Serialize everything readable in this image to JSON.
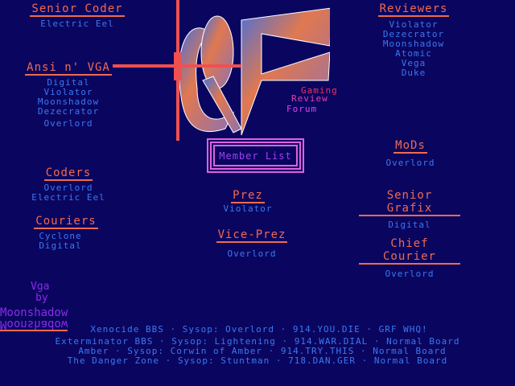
{
  "groups": [
    {
      "title": "Senior Coder",
      "items": [
        "Electric Eel"
      ]
    },
    {
      "title": "Ansi n' VGA",
      "items": [
        "Digital",
        "Violator",
        "Moonshadow",
        "Dezecrator",
        "Overlord"
      ]
    },
    {
      "title": "Coders",
      "items": [
        "Overlord",
        "Electric Eel"
      ]
    },
    {
      "title": "Couriers",
      "items": [
        "Cyclone",
        "Digital"
      ]
    },
    {
      "title": "Reviewers",
      "items": [
        "Violator",
        "Dezecrator",
        "Moonshadow",
        "Atomic",
        "Vega",
        "Duke"
      ]
    },
    {
      "title": "MoDs",
      "items": [
        "Overlord"
      ]
    },
    {
      "title": "Senior Grafix",
      "items": [
        "Digital"
      ]
    },
    {
      "title": "Chief Courier",
      "items": [
        "Overlord"
      ]
    },
    {
      "title": "Prez",
      "items": [
        "Violator"
      ]
    },
    {
      "title": "Vice-Prez",
      "items": [
        "Overlord"
      ]
    }
  ],
  "logo": {
    "text": "GRF",
    "tagline": [
      "Gaming",
      "Review",
      "Forum"
    ]
  },
  "member_list_label": "Member List",
  "credit": {
    "line1": "Vga",
    "line2": "by",
    "artist": "Moonshadow"
  },
  "footer": [
    "Xenocide BBS · Sysop: Overlord · 914.YOU.DIE · GRF WHQ!",
    "Exterminator BBS · Sysop: Lightening · 914.WAR.DIAL · Normal Board",
    "Amber · Sysop: Corwin of Amber · 914.TRY.THIS · Normal Board",
    "The Danger Zone · Sysop: Stuntman · 718.DAN.GER · Normal Board"
  ],
  "colors": {
    "background": "#0a0660",
    "heading": "#f06a50",
    "text": "#3a78f0",
    "accent": "#e060e0",
    "credit": "#8a2be8"
  }
}
